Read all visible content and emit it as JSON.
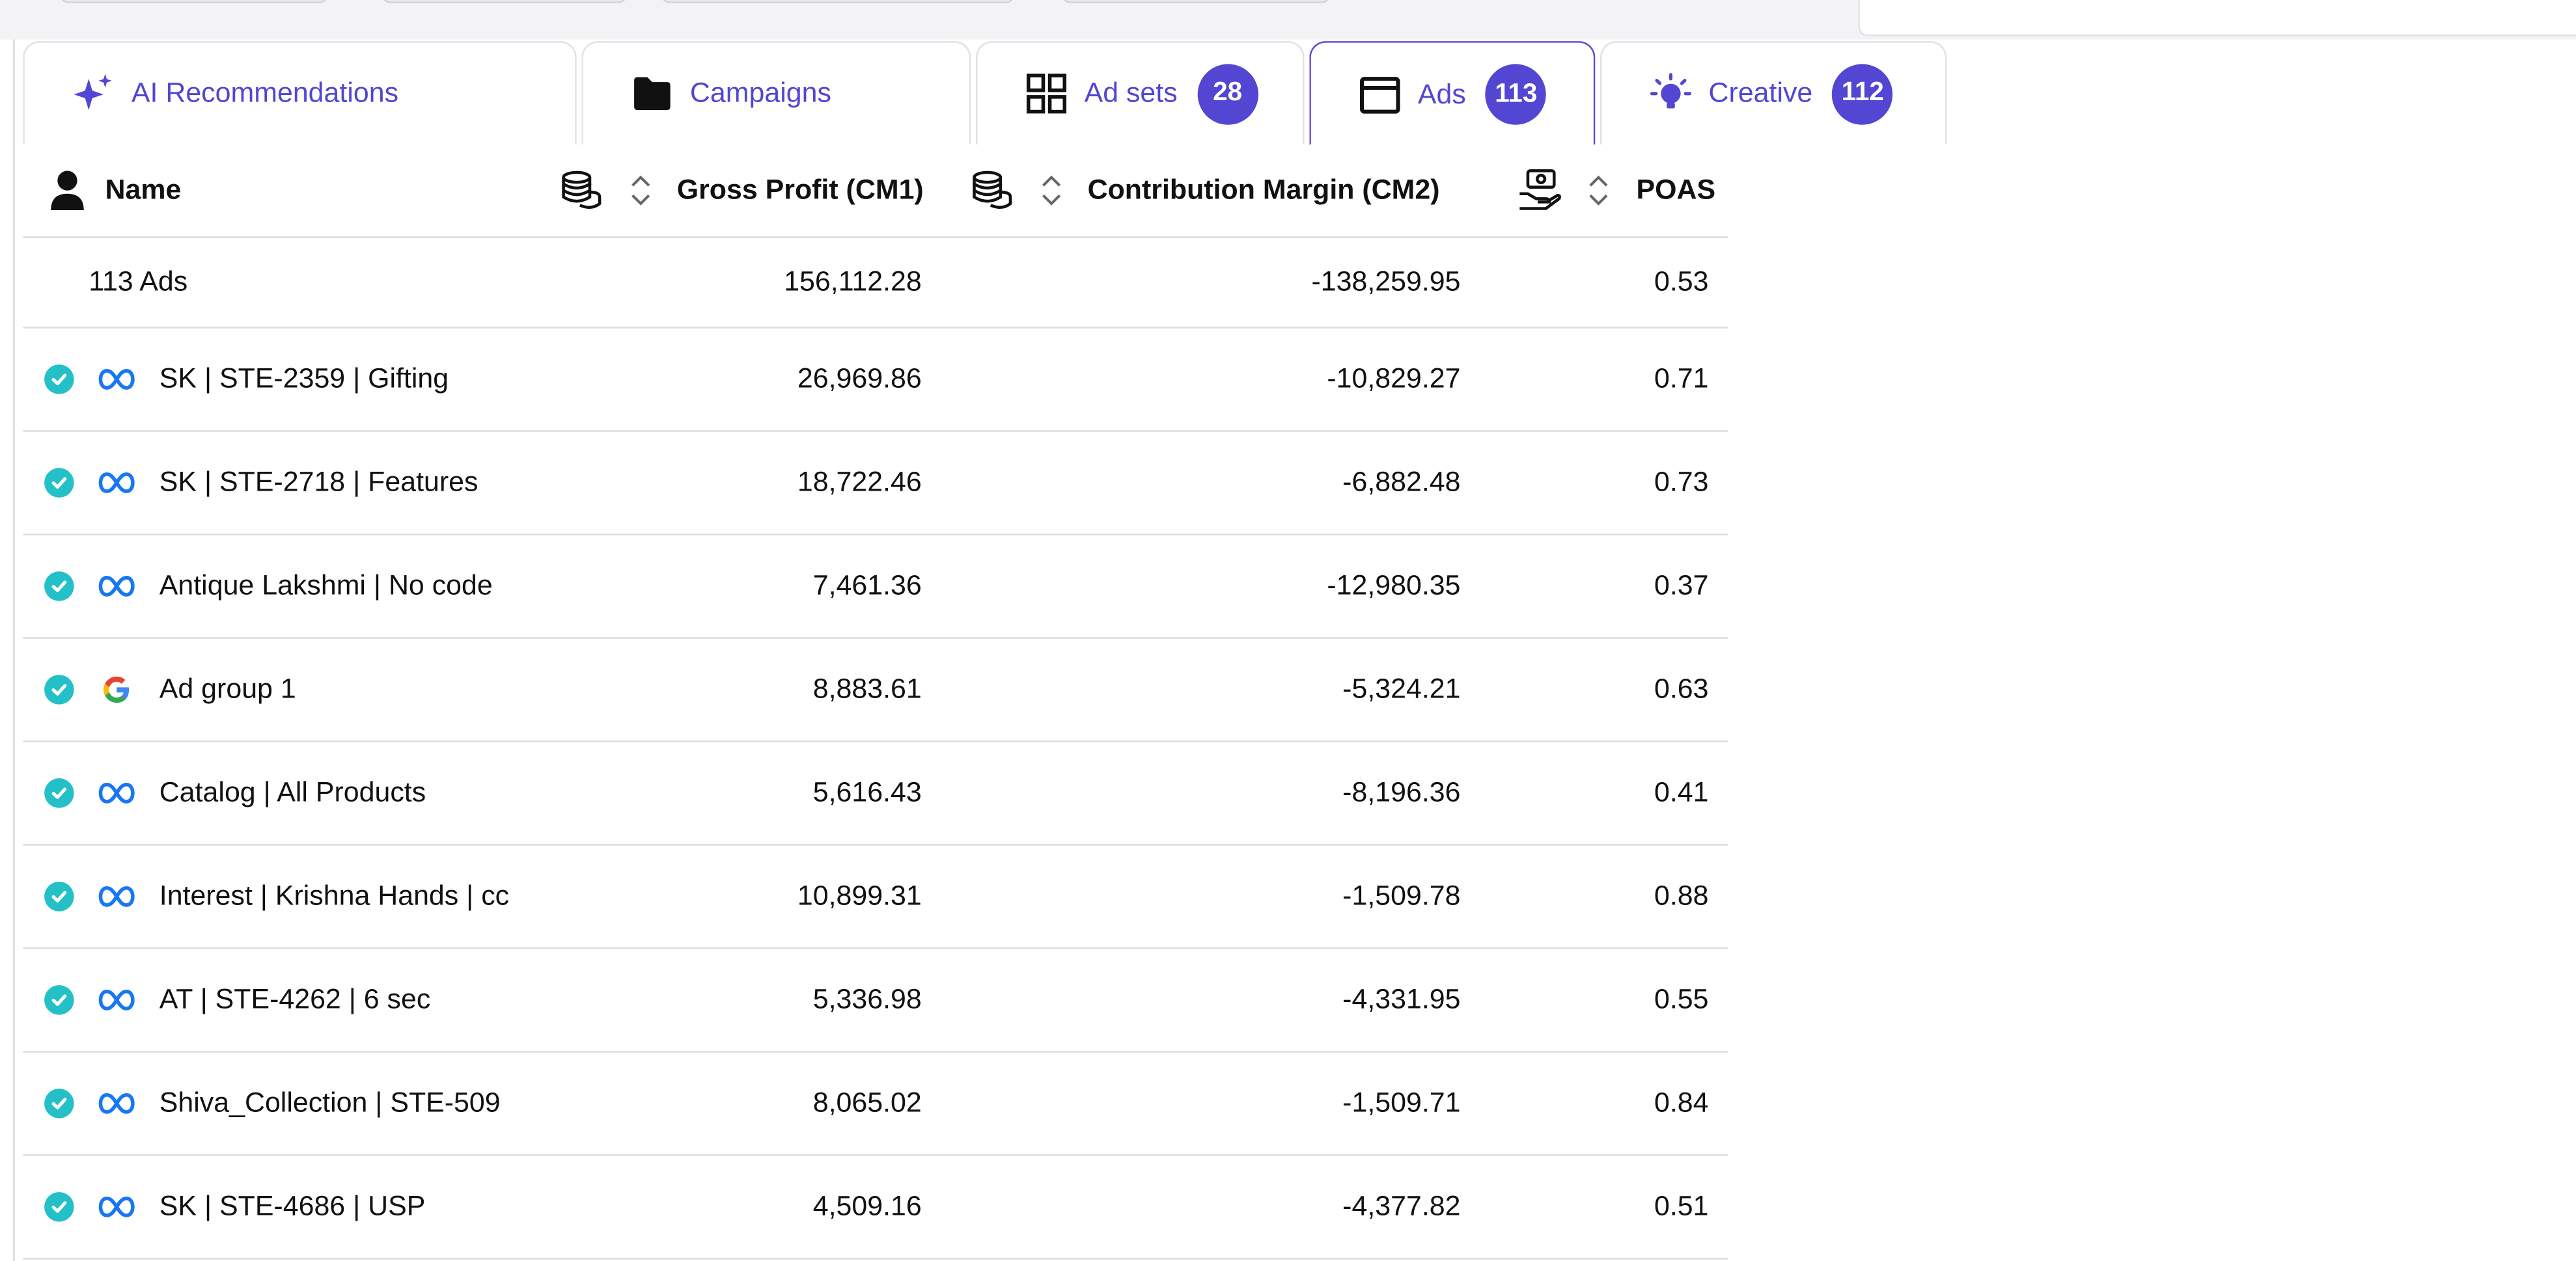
{
  "tabs": {
    "ai": {
      "label": "AI Recommendations",
      "icon": "sparkle-icon"
    },
    "campaigns": {
      "label": "Campaigns",
      "icon": "folder-icon"
    },
    "adsets": {
      "label": "Ad sets",
      "icon": "grid-icon",
      "count": "28"
    },
    "ads": {
      "label": "Ads",
      "icon": "window-icon",
      "count": "113",
      "active": true
    },
    "creative": {
      "label": "Creative",
      "icon": "lightbulb-icon",
      "count": "112"
    }
  },
  "table": {
    "columns": {
      "name": "Name",
      "gross_profit": "Gross Profit (CM1)",
      "contribution_margin": "Contribution Margin (CM2)",
      "poas": "POAS"
    },
    "summary": {
      "label": "113 Ads",
      "gross_profit": "156,112.28",
      "contribution_margin": "-138,259.95",
      "poas": "0.53"
    },
    "rows": [
      {
        "platform": "meta",
        "status": "active",
        "name": "SK | STE-2359 | Gifting",
        "gross_profit": "26,969.86",
        "contribution_margin": "-10,829.27",
        "poas": "0.71"
      },
      {
        "platform": "meta",
        "status": "active",
        "name": "SK | STE-2718 | Features",
        "gross_profit": "18,722.46",
        "contribution_margin": "-6,882.48",
        "poas": "0.73"
      },
      {
        "platform": "meta",
        "status": "active",
        "name": "Antique Lakshmi | No code",
        "gross_profit": "7,461.36",
        "contribution_margin": "-12,980.35",
        "poas": "0.37"
      },
      {
        "platform": "google",
        "status": "active",
        "name": "Ad group 1",
        "gross_profit": "8,883.61",
        "contribution_margin": "-5,324.21",
        "poas": "0.63"
      },
      {
        "platform": "meta",
        "status": "active",
        "name": "Catalog | All Products",
        "gross_profit": "5,616.43",
        "contribution_margin": "-8,196.36",
        "poas": "0.41"
      },
      {
        "platform": "meta",
        "status": "active",
        "name": "Interest | Krishna Hands | cc",
        "gross_profit": "10,899.31",
        "contribution_margin": "-1,509.78",
        "poas": "0.88"
      },
      {
        "platform": "meta",
        "status": "active",
        "name": "AT | STE-4262 | 6 sec",
        "gross_profit": "5,336.98",
        "contribution_margin": "-4,331.95",
        "poas": "0.55"
      },
      {
        "platform": "meta",
        "status": "active",
        "name": "Shiva_Collection | STE-509",
        "gross_profit": "8,065.02",
        "contribution_margin": "-1,509.71",
        "poas": "0.84"
      },
      {
        "platform": "meta",
        "status": "active",
        "name": "SK | STE-4686 | USP",
        "gross_profit": "4,509.16",
        "contribution_margin": "-4,377.82",
        "poas": "0.51"
      }
    ]
  },
  "colors": {
    "accent": "#5246d3",
    "status_active": "#23c0c7",
    "meta_blue": "#1877f2"
  }
}
